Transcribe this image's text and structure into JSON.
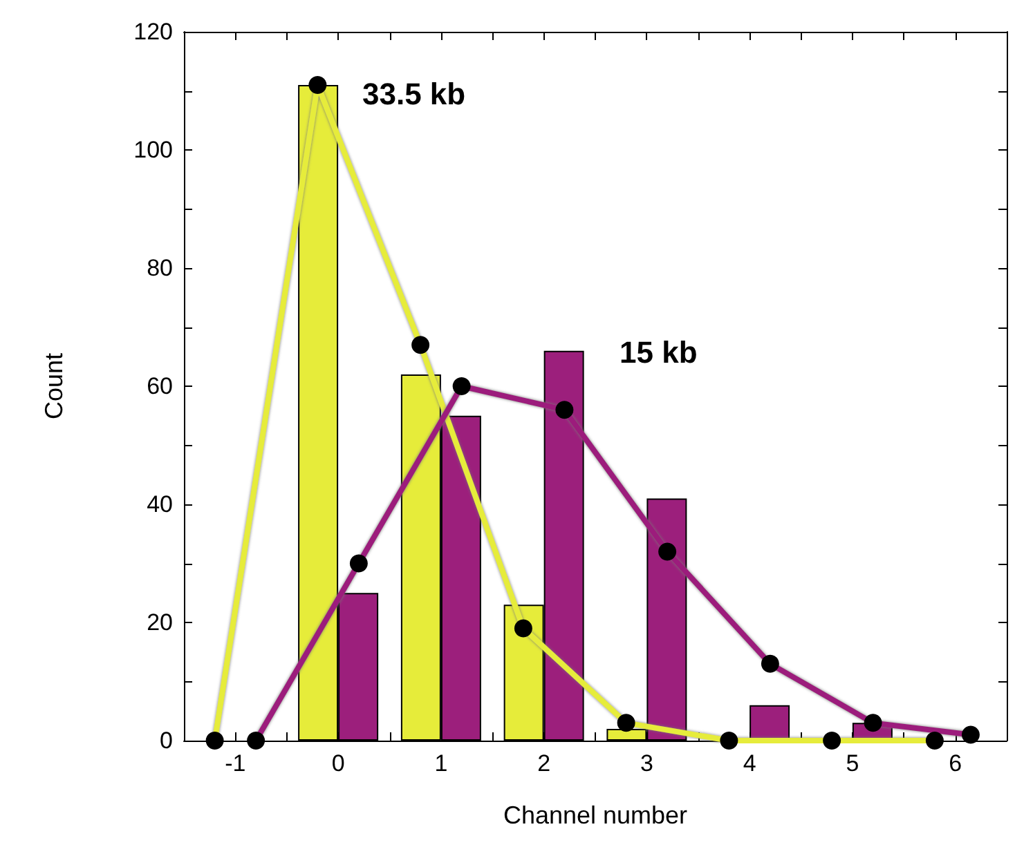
{
  "chart_data": {
    "type": "bar",
    "xlabel": "Channel number",
    "ylabel": "Count",
    "xlim": [
      -1.5,
      6.5
    ],
    "ylim": [
      0,
      120
    ],
    "xticks": [
      -1,
      0,
      1,
      2,
      3,
      4,
      5,
      6,
      {
        "value": -0.5,
        "label": null
      },
      {
        "value": 0.5,
        "label": null
      },
      {
        "value": 1.5,
        "label": null
      },
      {
        "value": 2.5,
        "label": null
      },
      {
        "value": 3.5,
        "label": null
      },
      {
        "value": 4.5,
        "label": null
      },
      {
        "value": 5.5,
        "label": null
      }
    ],
    "yticks": [
      0,
      20,
      40,
      60,
      80,
      100,
      120,
      {
        "value": 10,
        "label": null
      },
      {
        "value": 30,
        "label": null
      },
      {
        "value": 50,
        "label": null
      },
      {
        "value": 70,
        "label": null
      },
      {
        "value": 90,
        "label": null
      },
      {
        "value": 110,
        "label": null
      }
    ],
    "grid": false,
    "marker": "circle",
    "series": [
      {
        "color": "#e6ec3a",
        "x": [
          0,
          1,
          2,
          3
        ],
        "values": [
          111,
          62,
          23,
          2
        ]
      },
      {
        "color": "#9c1f7c",
        "x": [
          0,
          1,
          2,
          3,
          4,
          5
        ],
        "values": [
          25,
          55,
          66,
          41,
          6,
          3
        ]
      },
      {
        "type": "line",
        "color": "#e6ec3a",
        "x": [
          -1.2,
          -0.2,
          0.8,
          1.8,
          2.8,
          3.8,
          4.8,
          5.8
        ],
        "values": [
          0,
          111,
          67,
          19,
          3,
          0,
          0,
          0
        ]
      },
      {
        "type": "line",
        "color": "#9c1f7c",
        "x": [
          -0.8,
          0.2,
          1.2,
          2.2,
          3.2,
          4.2,
          5.2,
          6.15
        ],
        "values": [
          0,
          30,
          60,
          56,
          32,
          13,
          3,
          1
        ]
      }
    ],
    "annotations": [
      "33.5 kb",
      "15 kb"
    ]
  }
}
